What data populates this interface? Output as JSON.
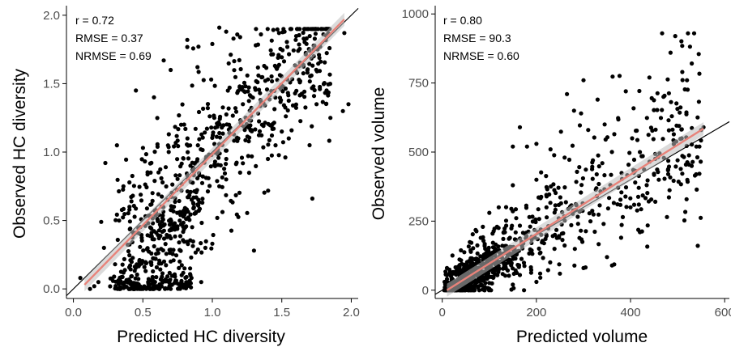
{
  "chart_data": [
    {
      "type": "scatter",
      "title": "",
      "xlabel": "Predicted HC diversity",
      "ylabel": "Observed HC diversity",
      "xlim": [
        -0.05,
        2.05
      ],
      "ylim": [
        -0.07,
        2.07
      ],
      "xticks": [
        0.0,
        0.5,
        1.0,
        1.5,
        2.0
      ],
      "yticks": [
        0.0,
        0.5,
        1.0,
        1.5,
        2.0
      ],
      "xtick_labels": [
        "0.0",
        "0.5",
        "1.0",
        "1.5",
        "2.0"
      ],
      "ytick_labels": [
        "0.0",
        "0.5",
        "1.0",
        "1.5",
        "2.0"
      ],
      "annotations": [
        "r = 0.72",
        "RMSE = 0.37",
        "NRMSE = 0.69"
      ],
      "identity_line": true,
      "fit_line": {
        "x": [
          0.08,
          1.95
        ],
        "y": [
          0.03,
          1.97
        ],
        "color": "#e8837a"
      },
      "grid": false,
      "point_color": "#000000",
      "points_seed": 11,
      "points_count": 900,
      "points": [
        [
          0.05,
          0.08
        ],
        [
          0.12,
          0.0
        ],
        [
          0.15,
          0.02
        ],
        [
          0.18,
          0.05
        ],
        [
          0.2,
          0.49
        ],
        [
          0.22,
          0.3
        ],
        [
          0.23,
          0.92
        ],
        [
          0.3,
          0.18
        ],
        [
          0.36,
          0.75
        ],
        [
          0.4,
          0.0
        ],
        [
          0.45,
          0.02
        ],
        [
          0.55,
          0.0
        ],
        [
          0.6,
          0.02
        ],
        [
          0.7,
          0.0
        ],
        [
          0.8,
          0.02
        ],
        [
          0.45,
          1.45
        ],
        [
          0.58,
          1.4
        ],
        [
          0.65,
          1.67
        ],
        [
          0.7,
          1.6
        ],
        [
          0.82,
          1.82
        ],
        [
          0.9,
          1.77
        ],
        [
          1.0,
          1.79
        ],
        [
          1.05,
          1.91
        ],
        [
          1.1,
          1.88
        ],
        [
          1.2,
          1.84
        ],
        [
          1.35,
          1.86
        ],
        [
          1.48,
          1.87
        ],
        [
          1.52,
          1.88
        ],
        [
          1.6,
          1.82
        ],
        [
          1.8,
          1.86
        ],
        [
          1.95,
          1.87
        ],
        [
          1.98,
          1.35
        ],
        [
          1.94,
          1.3
        ],
        [
          1.85,
          1.25
        ],
        [
          1.75,
          1.35
        ],
        [
          1.72,
          0.66
        ],
        [
          1.7,
          1.05
        ],
        [
          1.55,
          1.1
        ],
        [
          1.5,
          1.15
        ],
        [
          1.4,
          0.95
        ],
        [
          1.2,
          0.85
        ],
        [
          1.1,
          0.8
        ],
        [
          1.05,
          0.75
        ],
        [
          1.0,
          0.33
        ],
        [
          1.3,
          0.28
        ],
        [
          0.95,
          0.3
        ],
        [
          0.85,
          0.08
        ],
        [
          0.92,
          0.05
        ],
        [
          0.8,
          0.15
        ],
        [
          0.7,
          0.2
        ]
      ]
    },
    {
      "type": "scatter",
      "title": "",
      "xlabel": "Predicted volume",
      "ylabel": "Observed volume",
      "xlim": [
        -15,
        610
      ],
      "ylim": [
        -30,
        1030
      ],
      "xticks": [
        0,
        200,
        400,
        600
      ],
      "yticks": [
        0,
        250,
        500,
        750,
        1000
      ],
      "xtick_labels": [
        "0",
        "200",
        "400",
        "600"
      ],
      "ytick_labels": [
        "0",
        "250",
        "500",
        "750",
        "1000"
      ],
      "annotations": [
        "r = 0.80",
        "RMSE = 90.3",
        "NRMSE = 0.60"
      ],
      "identity_line": true,
      "fit_line": {
        "x": [
          10,
          555
        ],
        "y": [
          0,
          585
        ],
        "color": "#e8837a"
      },
      "grid": false,
      "point_color": "#000000",
      "points_seed": 23,
      "points_count": 900,
      "points": [
        [
          495,
          920
        ],
        [
          485,
          860
        ],
        [
          545,
          855
        ],
        [
          510,
          790
        ],
        [
          440,
          770
        ],
        [
          520,
          760
        ],
        [
          300,
          760
        ],
        [
          390,
          720
        ],
        [
          470,
          700
        ],
        [
          265,
          710
        ],
        [
          330,
          690
        ],
        [
          280,
          650
        ],
        [
          295,
          640
        ],
        [
          310,
          580
        ],
        [
          345,
          600
        ],
        [
          165,
          590
        ],
        [
          180,
          520
        ],
        [
          200,
          530
        ],
        [
          230,
          510
        ],
        [
          150,
          520
        ],
        [
          260,
          480
        ],
        [
          320,
          470
        ],
        [
          420,
          500
        ],
        [
          480,
          420
        ],
        [
          500,
          470
        ],
        [
          530,
          450
        ],
        [
          550,
          580
        ],
        [
          555,
          590
        ],
        [
          540,
          520
        ],
        [
          460,
          400
        ],
        [
          410,
          390
        ],
        [
          400,
          300
        ],
        [
          420,
          210
        ],
        [
          380,
          190
        ],
        [
          350,
          120
        ],
        [
          300,
          80
        ],
        [
          250,
          60
        ],
        [
          200,
          30
        ],
        [
          150,
          20
        ],
        [
          100,
          5
        ],
        [
          60,
          0
        ],
        [
          30,
          10
        ],
        [
          10,
          80
        ],
        [
          20,
          40
        ],
        [
          5,
          30
        ],
        [
          340,
          460
        ],
        [
          120,
          300
        ],
        [
          100,
          280
        ],
        [
          150,
          380
        ],
        [
          200,
          400
        ]
      ]
    }
  ]
}
